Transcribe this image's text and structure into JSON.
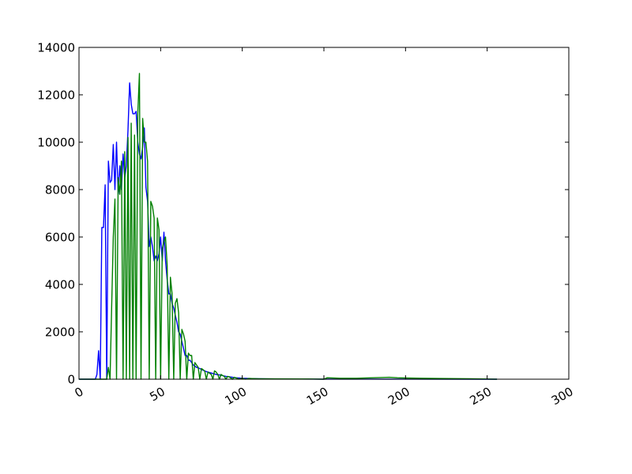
{
  "chart_data": {
    "type": "line",
    "title": "",
    "xlabel": "",
    "ylabel": "",
    "xlim": [
      0,
      300
    ],
    "ylim": [
      0,
      14000
    ],
    "grid": false,
    "xticks": [
      "0",
      "50",
      "100",
      "150",
      "200",
      "250",
      "300"
    ],
    "yticks": [
      "0",
      "2000",
      "4000",
      "6000",
      "8000",
      "10000",
      "12000",
      "14000"
    ],
    "series": [
      {
        "color": "#0000ff",
        "points": [
          [
            0,
            0
          ],
          [
            6,
            0
          ],
          [
            10,
            0
          ],
          [
            11,
            200
          ],
          [
            12,
            1200
          ],
          [
            13,
            0
          ],
          [
            14,
            6400
          ],
          [
            15,
            6400
          ],
          [
            16,
            8200
          ],
          [
            17,
            0
          ],
          [
            18,
            9200
          ],
          [
            19,
            8300
          ],
          [
            20,
            8400
          ],
          [
            21,
            9900
          ],
          [
            22,
            8000
          ],
          [
            23,
            10000
          ],
          [
            24,
            7800
          ],
          [
            25,
            9000
          ],
          [
            26,
            8000
          ],
          [
            27,
            9500
          ],
          [
            28,
            8500
          ],
          [
            29,
            9000
          ],
          [
            30,
            10500
          ],
          [
            31,
            12500
          ],
          [
            32,
            11600
          ],
          [
            33,
            11200
          ],
          [
            34,
            11200
          ],
          [
            35,
            11300
          ],
          [
            36,
            10000
          ],
          [
            37,
            9500
          ],
          [
            38,
            9300
          ],
          [
            39,
            9800
          ],
          [
            40,
            10600
          ],
          [
            41,
            8100
          ],
          [
            42,
            7500
          ],
          [
            43,
            5600
          ],
          [
            44,
            6000
          ],
          [
            45,
            5600
          ],
          [
            46,
            5000
          ],
          [
            47,
            5200
          ],
          [
            48,
            5000
          ],
          [
            49,
            5300
          ],
          [
            50,
            6000
          ],
          [
            51,
            5000
          ],
          [
            52,
            6200
          ],
          [
            53,
            5000
          ],
          [
            54,
            4200
          ],
          [
            55,
            3600
          ],
          [
            56,
            3600
          ],
          [
            57,
            3200
          ],
          [
            58,
            3000
          ],
          [
            59,
            2700
          ],
          [
            60,
            2400
          ],
          [
            61,
            2000
          ],
          [
            62,
            1900
          ],
          [
            63,
            1600
          ],
          [
            64,
            1300
          ],
          [
            65,
            1000
          ],
          [
            66,
            1000
          ],
          [
            67,
            800
          ],
          [
            68,
            800
          ],
          [
            69,
            700
          ],
          [
            70,
            600
          ],
          [
            72,
            500
          ],
          [
            74,
            450
          ],
          [
            76,
            380
          ],
          [
            78,
            320
          ],
          [
            80,
            280
          ],
          [
            82,
            240
          ],
          [
            84,
            200
          ],
          [
            86,
            180
          ],
          [
            88,
            150
          ],
          [
            90,
            120
          ],
          [
            92,
            100
          ],
          [
            94,
            80
          ],
          [
            96,
            60
          ],
          [
            100,
            40
          ],
          [
            110,
            20
          ],
          [
            120,
            10
          ],
          [
            150,
            5
          ],
          [
            200,
            5
          ],
          [
            255,
            0
          ],
          [
            256,
            0
          ]
        ]
      },
      {
        "color": "#008000",
        "points": [
          [
            0,
            0
          ],
          [
            17,
            0
          ],
          [
            18,
            500
          ],
          [
            19,
            0
          ],
          [
            20,
            3000
          ],
          [
            21,
            6000
          ],
          [
            22,
            7600
          ],
          [
            23,
            0
          ],
          [
            24,
            8500
          ],
          [
            25,
            7800
          ],
          [
            26,
            9200
          ],
          [
            27,
            0
          ],
          [
            28,
            9600
          ],
          [
            29,
            0
          ],
          [
            30,
            10200
          ],
          [
            31,
            0
          ],
          [
            32,
            10800
          ],
          [
            33,
            0
          ],
          [
            34,
            10300
          ],
          [
            35,
            0
          ],
          [
            36,
            11200
          ],
          [
            37,
            12900
          ],
          [
            38,
            0
          ],
          [
            39,
            11000
          ],
          [
            40,
            10000
          ],
          [
            41,
            10000
          ],
          [
            42,
            9200
          ],
          [
            43,
            0
          ],
          [
            44,
            7500
          ],
          [
            45,
            7300
          ],
          [
            46,
            6800
          ],
          [
            47,
            0
          ],
          [
            48,
            6800
          ],
          [
            49,
            6300
          ],
          [
            50,
            0
          ],
          [
            51,
            5500
          ],
          [
            52,
            5800
          ],
          [
            53,
            6000
          ],
          [
            54,
            4800
          ],
          [
            55,
            0
          ],
          [
            56,
            4300
          ],
          [
            57,
            3600
          ],
          [
            58,
            0
          ],
          [
            59,
            3200
          ],
          [
            60,
            3400
          ],
          [
            61,
            2800
          ],
          [
            62,
            0
          ],
          [
            63,
            2100
          ],
          [
            64,
            1900
          ],
          [
            65,
            1600
          ],
          [
            66,
            0
          ],
          [
            67,
            1100
          ],
          [
            68,
            1000
          ],
          [
            69,
            1000
          ],
          [
            70,
            0
          ],
          [
            71,
            700
          ],
          [
            72,
            600
          ],
          [
            73,
            500
          ],
          [
            74,
            0
          ],
          [
            75,
            450
          ],
          [
            76,
            400
          ],
          [
            77,
            350
          ],
          [
            78,
            0
          ],
          [
            79,
            300
          ],
          [
            80,
            250
          ],
          [
            81,
            200
          ],
          [
            82,
            0
          ],
          [
            83,
            350
          ],
          [
            84,
            300
          ],
          [
            85,
            200
          ],
          [
            86,
            0
          ],
          [
            87,
            200
          ],
          [
            88,
            150
          ],
          [
            89,
            120
          ],
          [
            90,
            0
          ],
          [
            91,
            120
          ],
          [
            92,
            100
          ],
          [
            94,
            0
          ],
          [
            95,
            80
          ],
          [
            96,
            60
          ],
          [
            98,
            0
          ],
          [
            100,
            40
          ],
          [
            102,
            0
          ],
          [
            104,
            30
          ],
          [
            110,
            20
          ],
          [
            120,
            15
          ],
          [
            140,
            10
          ],
          [
            150,
            0
          ],
          [
            152,
            60
          ],
          [
            160,
            40
          ],
          [
            170,
            40
          ],
          [
            180,
            60
          ],
          [
            190,
            80
          ],
          [
            195,
            60
          ],
          [
            200,
            50
          ],
          [
            210,
            40
          ],
          [
            220,
            30
          ],
          [
            240,
            20
          ],
          [
            255,
            0
          ],
          [
            256,
            0
          ]
        ]
      }
    ]
  }
}
